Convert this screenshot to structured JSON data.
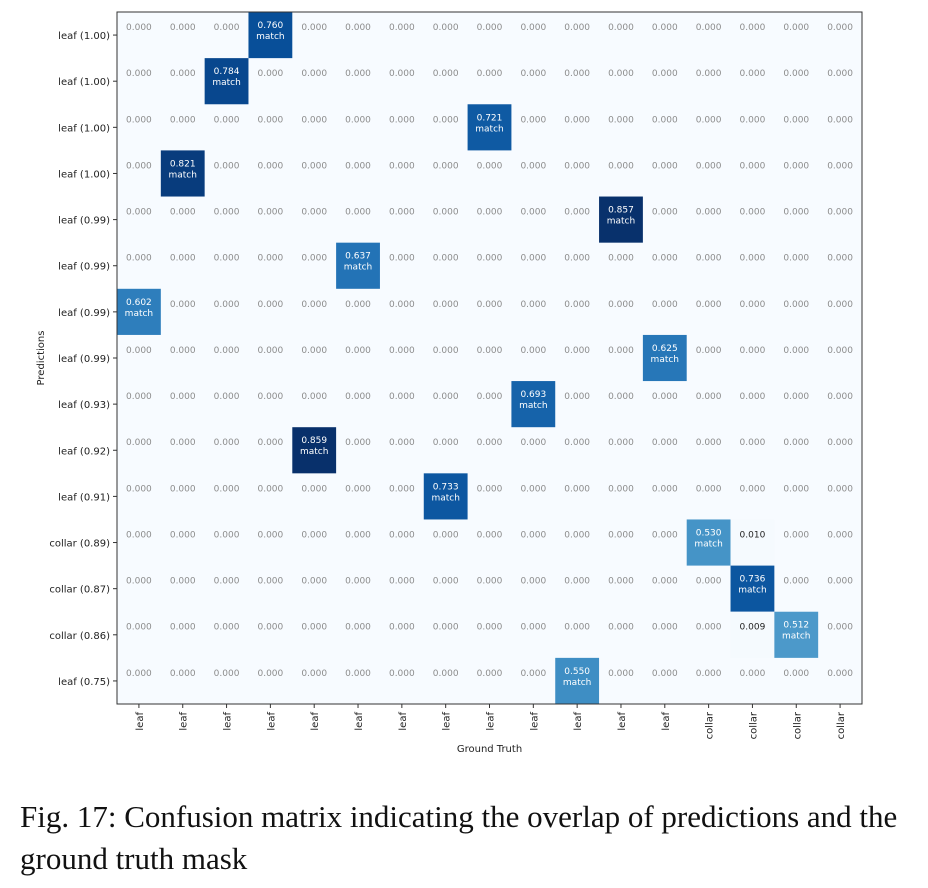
{
  "chart_data": {
    "type": "heatmap",
    "xlabel": "Ground Truth",
    "ylabel": "Predictions",
    "x_tick_labels": [
      "leaf",
      "leaf",
      "leaf",
      "leaf",
      "leaf",
      "leaf",
      "leaf",
      "leaf",
      "leaf",
      "leaf",
      "leaf",
      "leaf",
      "leaf",
      "collar",
      "collar",
      "collar",
      "collar"
    ],
    "y_tick_labels": [
      "leaf (1.00)",
      "leaf (1.00)",
      "leaf (1.00)",
      "leaf (1.00)",
      "leaf (0.99)",
      "leaf (0.99)",
      "leaf (0.99)",
      "leaf (0.99)",
      "leaf (0.93)",
      "leaf (0.92)",
      "leaf (0.91)",
      "collar (0.89)",
      "collar (0.87)",
      "collar (0.86)",
      "leaf (0.75)"
    ],
    "cells": [
      {
        "row": 0,
        "col": 3,
        "value": 0.76,
        "label": "match"
      },
      {
        "row": 1,
        "col": 2,
        "value": 0.784,
        "label": "match"
      },
      {
        "row": 2,
        "col": 8,
        "value": 0.721,
        "label": "match"
      },
      {
        "row": 3,
        "col": 1,
        "value": 0.821,
        "label": "match"
      },
      {
        "row": 4,
        "col": 11,
        "value": 0.857,
        "label": "match"
      },
      {
        "row": 5,
        "col": 5,
        "value": 0.637,
        "label": "match"
      },
      {
        "row": 6,
        "col": 0,
        "value": 0.602,
        "label": "match"
      },
      {
        "row": 7,
        "col": 12,
        "value": 0.625,
        "label": "match"
      },
      {
        "row": 8,
        "col": 9,
        "value": 0.693,
        "label": "match"
      },
      {
        "row": 9,
        "col": 4,
        "value": 0.859,
        "label": "match"
      },
      {
        "row": 10,
        "col": 7,
        "value": 0.733,
        "label": "match"
      },
      {
        "row": 11,
        "col": 13,
        "value": 0.53,
        "label": "match"
      },
      {
        "row": 11,
        "col": 14,
        "value": 0.01,
        "label": ""
      },
      {
        "row": 12,
        "col": 14,
        "value": 0.736,
        "label": "match"
      },
      {
        "row": 13,
        "col": 14,
        "value": 0.009,
        "label": ""
      },
      {
        "row": 13,
        "col": 15,
        "value": 0.512,
        "label": "match"
      },
      {
        "row": 14,
        "col": 10,
        "value": 0.55,
        "label": "match"
      }
    ],
    "default_value": 0.0,
    "colormap": "Blues",
    "grid": false
  },
  "caption": "Fig. 17: Confusion matrix indicating the overlap of predictions and the ground truth mask"
}
